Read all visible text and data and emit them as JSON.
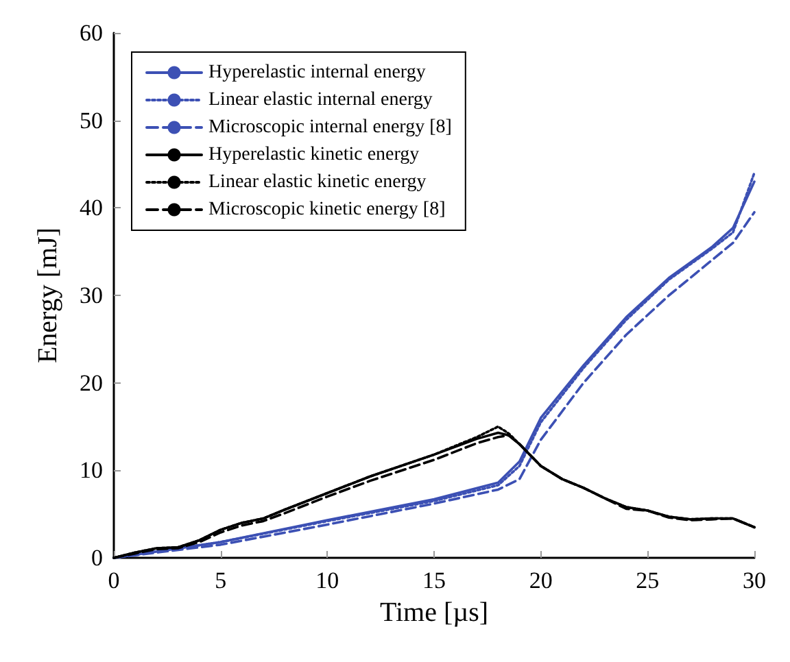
{
  "chart_data": {
    "type": "line",
    "xlabel": "Time [µs]",
    "ylabel": "Energy [mJ]",
    "xlim": [
      0,
      30
    ],
    "ylim": [
      0,
      60
    ],
    "xticks": [
      0,
      5,
      10,
      15,
      20,
      25,
      30
    ],
    "yticks": [
      0,
      10,
      20,
      30,
      40,
      50,
      60
    ],
    "grid": false,
    "legend": "top left",
    "marker": "none",
    "series": [
      {
        "name": "Hyperelastic internal energy",
        "color": "#3c50b4",
        "line_style": "solid",
        "x": [
          0,
          5,
          10,
          15,
          18,
          19,
          20,
          22,
          24,
          26,
          28,
          29,
          30
        ],
        "values": [
          0,
          1.8,
          4.3,
          6.7,
          8.6,
          11,
          16,
          22,
          27.5,
          32,
          35.5,
          37.7,
          43
        ]
      },
      {
        "name": "Linear elastic internal energy",
        "color": "#3c50b4",
        "line_style": "dotted",
        "x": [
          0,
          5,
          10,
          15,
          18,
          19,
          20,
          22,
          24,
          26,
          28,
          29,
          30
        ],
        "values": [
          0,
          1.8,
          4.2,
          6.5,
          8.3,
          10.5,
          15.5,
          21.7,
          27.2,
          31.8,
          35.3,
          37.2,
          44
        ]
      },
      {
        "name": "Microscopic internal energy [8]",
        "color": "#3c50b4",
        "line_style": "dashed",
        "x": [
          0,
          5,
          10,
          15,
          18,
          19,
          20,
          22,
          24,
          26,
          28,
          29,
          30
        ],
        "values": [
          0,
          1.5,
          3.8,
          6.2,
          7.8,
          9,
          13.5,
          20,
          25.5,
          30,
          34,
          36,
          39.5
        ]
      },
      {
        "name": "Hyperelastic kinetic energy",
        "color": "#000000",
        "line_style": "solid",
        "x": [
          0,
          1,
          2,
          3,
          4,
          5,
          6,
          7,
          8,
          10,
          12,
          15,
          17,
          18,
          18.5,
          19,
          20,
          21,
          22,
          23,
          24,
          25,
          26,
          27,
          28,
          29,
          30
        ],
        "values": [
          0,
          0.6,
          1.1,
          1.2,
          2,
          3.2,
          4,
          4.5,
          5.5,
          7.4,
          9.3,
          11.8,
          13.6,
          14.3,
          14,
          13,
          10.5,
          9,
          8,
          6.8,
          5.8,
          5.4,
          4.7,
          4.4,
          4.5,
          4.5,
          3.5
        ]
      },
      {
        "name": "Linear elastic kinetic energy",
        "color": "#000000",
        "line_style": "dotted",
        "x": [
          0,
          1,
          2,
          3,
          4,
          5,
          6,
          7,
          8,
          10,
          12,
          15,
          17,
          18,
          18.5,
          19,
          20,
          21,
          22,
          23,
          24,
          25,
          26,
          27,
          28,
          29,
          30
        ],
        "values": [
          0,
          0.6,
          1.1,
          1.2,
          2,
          3.2,
          4,
          4.5,
          5.5,
          7.4,
          9.3,
          11.8,
          13.8,
          15,
          14.2,
          13,
          10.5,
          9,
          8,
          6.8,
          5.8,
          5.4,
          4.7,
          4.4,
          4.5,
          4.5,
          3.5
        ]
      },
      {
        "name": "Microscopic kinetic energy [8]",
        "color": "#000000",
        "line_style": "dashed",
        "x": [
          0,
          1,
          2,
          3,
          4,
          5,
          6,
          7,
          8,
          10,
          12,
          15,
          17,
          18,
          18.5,
          19,
          20,
          21,
          22,
          23,
          24,
          25,
          26,
          27,
          28,
          29,
          30
        ],
        "values": [
          0,
          0.5,
          1,
          1.1,
          1.8,
          2.9,
          3.7,
          4.2,
          5.1,
          7,
          8.8,
          11.2,
          13.1,
          13.8,
          14,
          13,
          10.5,
          9,
          8,
          6.8,
          5.6,
          5.4,
          4.6,
          4.3,
          4.4,
          4.5,
          3.5
        ]
      }
    ]
  }
}
